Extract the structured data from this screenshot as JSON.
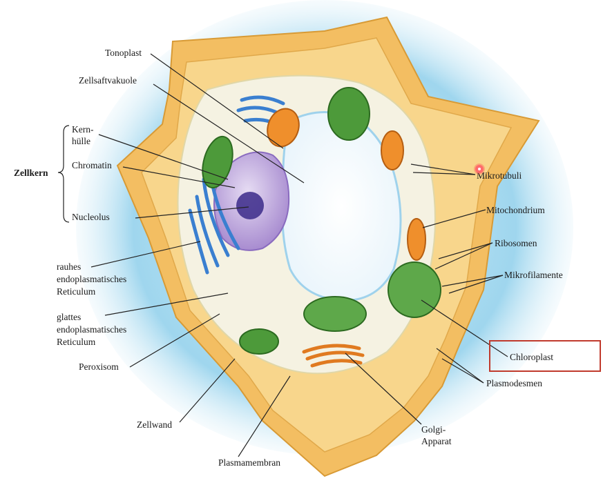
{
  "labels": {
    "tonoplast": "Tonoplast",
    "zellsaftvakuole": "Zellsaftvakuole",
    "kernhuelle_line1": "Kern-",
    "kernhuelle_line2": "hülle",
    "chromatin": "Chromatin",
    "zellkern": "Zellkern",
    "nucleolus": "Nucleolus",
    "rauhes_er_line1": "rauhes",
    "rauhes_er_line2": "endoplasmatisches",
    "rauhes_er_line3": "Reticulum",
    "glattes_er_line1": "glattes",
    "glattes_er_line2": "endoplasmatisches",
    "glattes_er_line3": "Reticulum",
    "peroxisom": "Peroxisom",
    "zellwand": "Zellwand",
    "plasmamembran": "Plasmamembran",
    "golgi_line1": "Golgi-",
    "golgi_line2": "Apparat",
    "plasmodesmen": "Plasmodesmen",
    "chloroplast": "Chloroplast",
    "mikrofilamente": "Mikrofilamente",
    "ribosomen": "Ribosomen",
    "mitochondrium": "Mitochondrium",
    "mikrotubuli": "Mikrotubuli"
  },
  "highlighted_label": "Chloroplast",
  "colors": {
    "cell_wall": "#f5c46a",
    "cytoplasm": "#f6f3e4",
    "vacuole": "#ffffff",
    "nucleus": "#b9a2d8",
    "chloroplast": "#3d8b2e",
    "mitochondrion": "#e8842a",
    "er": "#3a7fd0",
    "highlight_box": "#c0392b",
    "background_glow": "#a9dcef"
  }
}
